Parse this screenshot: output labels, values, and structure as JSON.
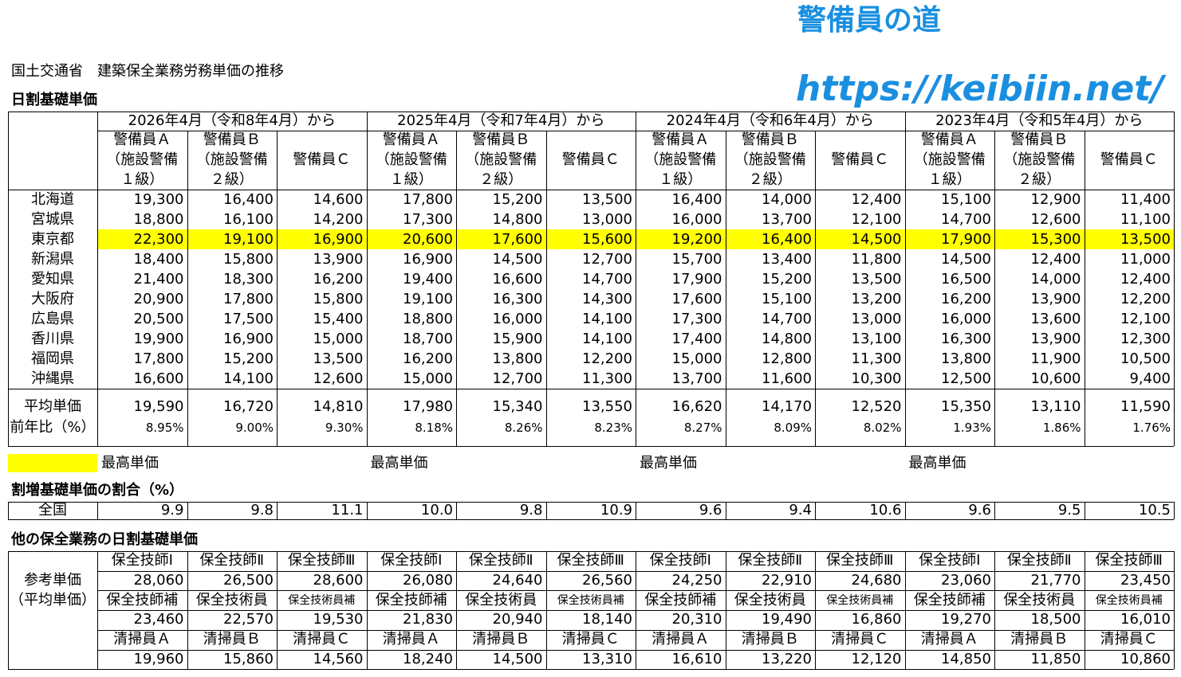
{
  "brand": {
    "name": "警備員の道",
    "url": "https://keibiin.net/"
  },
  "title": "国土交通省　建築保全業務労務単価の推移",
  "daily": {
    "heading": "日割基礎単価",
    "periods": [
      "2026年4月（令和8年4月）から",
      "2025年4月（令和7年4月）から",
      "2024年4月（令和6年4月）から",
      "2023年4月（令和5年4月）から"
    ],
    "column_headers": [
      [
        "警備員Ａ",
        "（施設警備",
        "１級）"
      ],
      [
        "警備員Ｂ",
        "（施設警備",
        "２級）"
      ],
      [
        "警備員Ｃ"
      ]
    ],
    "rows": [
      {
        "region": "北海道",
        "values": [
          "19,300",
          "16,400",
          "14,600",
          "17,800",
          "15,200",
          "13,500",
          "16,400",
          "14,000",
          "12,400",
          "15,100",
          "12,900",
          "11,400"
        ]
      },
      {
        "region": "宮城県",
        "values": [
          "18,800",
          "16,100",
          "14,200",
          "17,300",
          "14,800",
          "13,000",
          "16,000",
          "13,700",
          "12,100",
          "14,700",
          "12,600",
          "11,100"
        ]
      },
      {
        "region": "東京都",
        "values": [
          "22,300",
          "19,100",
          "16,900",
          "20,600",
          "17,600",
          "15,600",
          "19,200",
          "16,400",
          "14,500",
          "17,900",
          "15,300",
          "13,500"
        ]
      },
      {
        "region": "新潟県",
        "values": [
          "18,400",
          "15,800",
          "13,900",
          "16,900",
          "14,500",
          "12,700",
          "15,700",
          "13,400",
          "11,800",
          "14,500",
          "12,400",
          "11,000"
        ]
      },
      {
        "region": "愛知県",
        "values": [
          "21,400",
          "18,300",
          "16,200",
          "19,400",
          "16,600",
          "14,700",
          "17,900",
          "15,200",
          "13,500",
          "16,500",
          "14,000",
          "12,400"
        ]
      },
      {
        "region": "大阪府",
        "values": [
          "20,900",
          "17,800",
          "15,800",
          "19,100",
          "16,300",
          "14,300",
          "17,600",
          "15,100",
          "13,200",
          "16,200",
          "13,900",
          "12,200"
        ]
      },
      {
        "region": "広島県",
        "values": [
          "20,500",
          "17,500",
          "15,400",
          "18,800",
          "16,000",
          "14,100",
          "17,300",
          "14,700",
          "13,000",
          "16,000",
          "13,600",
          "12,100"
        ]
      },
      {
        "region": "香川県",
        "values": [
          "19,900",
          "16,900",
          "15,000",
          "18,700",
          "15,900",
          "14,100",
          "17,400",
          "14,800",
          "13,100",
          "16,300",
          "13,900",
          "12,300"
        ]
      },
      {
        "region": "福岡県",
        "values": [
          "17,800",
          "15,200",
          "13,500",
          "16,200",
          "13,800",
          "12,200",
          "15,000",
          "12,800",
          "11,300",
          "13,800",
          "11,900",
          "10,500"
        ]
      },
      {
        "region": "沖縄県",
        "values": [
          "16,600",
          "14,100",
          "12,600",
          "15,000",
          "12,700",
          "11,300",
          "13,700",
          "11,600",
          "10,300",
          "12,500",
          "10,600",
          "9,400"
        ]
      }
    ],
    "average": {
      "label": "平均単価",
      "values": [
        "19,590",
        "16,720",
        "14,810",
        "17,980",
        "15,340",
        "13,550",
        "16,620",
        "14,170",
        "12,520",
        "15,350",
        "13,110",
        "11,590"
      ]
    },
    "yoy": {
      "label": "前年比（%）",
      "values": [
        "8.95%",
        "9.00%",
        "9.30%",
        "8.18%",
        "8.26%",
        "8.23%",
        "8.27%",
        "8.09%",
        "8.02%",
        "1.93%",
        "1.86%",
        "1.76%"
      ]
    },
    "highlight": {
      "row": 2,
      "color": "#ffff00",
      "label": "最高単価"
    }
  },
  "overtime": {
    "heading": "割増基礎単価の割合（%）",
    "label": "全国",
    "values": [
      "9.9",
      "9.8",
      "11.1",
      "10.0",
      "9.8",
      "10.9",
      "9.6",
      "9.4",
      "10.6",
      "9.6",
      "9.5",
      "10.5"
    ]
  },
  "other": {
    "heading": "他の保全業務の日割基礎単価",
    "label": [
      "参考単価",
      "（平均単価）"
    ],
    "groups": [
      {
        "headers": [
          "保全技師Ⅰ",
          "保全技師Ⅱ",
          "保全技師Ⅲ"
        ],
        "values": [
          "28,060",
          "26,500",
          "28,600",
          "26,080",
          "24,640",
          "26,560",
          "24,250",
          "22,910",
          "24,680",
          "23,060",
          "21,770",
          "23,450"
        ]
      },
      {
        "headers": [
          "保全技師補",
          "保全技術員",
          "保全技術員補"
        ],
        "values": [
          "23,460",
          "22,570",
          "19,530",
          "21,830",
          "20,940",
          "18,140",
          "20,310",
          "19,490",
          "16,860",
          "19,270",
          "18,500",
          "16,010"
        ]
      },
      {
        "headers": [
          "清掃員Ａ",
          "清掃員Ｂ",
          "清掃員Ｃ"
        ],
        "values": [
          "19,960",
          "15,860",
          "14,560",
          "18,240",
          "14,500",
          "13,310",
          "16,610",
          "13,220",
          "12,120",
          "14,850",
          "11,850",
          "10,860"
        ]
      }
    ]
  }
}
